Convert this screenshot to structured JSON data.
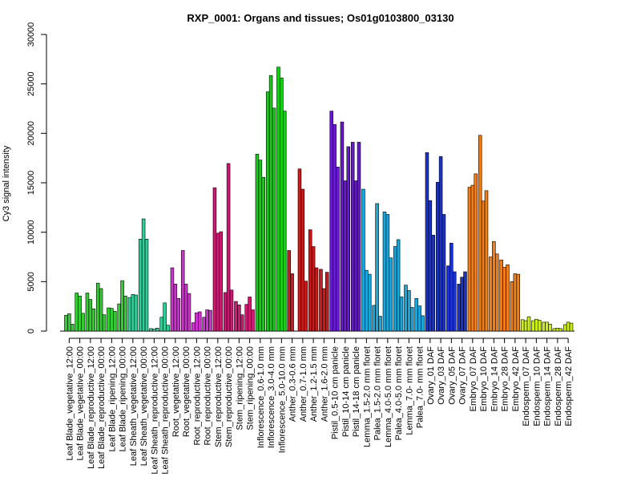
{
  "chart_data": {
    "type": "bar",
    "title": "RXP_0001: Organs and tissues; Os01g0103800_03130",
    "xlabel": "",
    "ylabel": "Cy3 signal intensity",
    "ylim": [
      0,
      30000
    ],
    "yticks": [
      0,
      5000,
      10000,
      15000,
      20000,
      25000,
      30000
    ],
    "grid": false,
    "legend": "none",
    "groups": [
      {
        "label": "Leaf Blade_vegetative_12:00",
        "color": "#33cc33",
        "values": [
          1600,
          1750,
          700
        ]
      },
      {
        "label": "Leaf Blade_vegetative_00:00",
        "color": "#33cc33",
        "values": [
          3850,
          3550,
          1800
        ]
      },
      {
        "label": "Leaf Blade_reproductive_12:00",
        "color": "#33cc33",
        "values": [
          3850,
          3200,
          2250
        ]
      },
      {
        "label": "Leaf Blade_reproductive_00:00",
        "color": "#33cc33",
        "values": [
          4850,
          4300,
          1650
        ]
      },
      {
        "label": "Leaf Blade_ripening_12:00",
        "color": "#33cc33",
        "values": [
          2350,
          2300,
          2000
        ]
      },
      {
        "label": "Leaf Blade_ripening_00:00",
        "color": "#33cc33",
        "values": [
          2750,
          5100,
          3550
        ]
      },
      {
        "label": "Leaf Sheath_vegetative_12:00",
        "color": "#33cc99",
        "values": [
          3400,
          3700,
          3650
        ]
      },
      {
        "label": "Leaf Sheath_vegetative_00:00",
        "color": "#33cc99",
        "values": [
          9300,
          11350,
          9300
        ]
      },
      {
        "label": "Leaf Sheath_reproductive_12:00",
        "color": "#33cc99",
        "values": [
          250,
          200,
          300
        ]
      },
      {
        "label": "Leaf Sheath_reproductive_00:00",
        "color": "#33cc99",
        "values": [
          1400,
          2850,
          600
        ]
      },
      {
        "label": "Root_vegetative_12:00",
        "color": "#cc33cc",
        "values": [
          6400,
          4750,
          3300
        ]
      },
      {
        "label": "Root_vegetative_00:00",
        "color": "#cc33cc",
        "values": [
          8150,
          4750,
          3800
        ]
      },
      {
        "label": "Root_reproductive_12:00",
        "color": "#cc33cc",
        "values": [
          850,
          1850,
          1950
        ]
      },
      {
        "label": "Root_reproductive_00:00",
        "color": "#cc33cc",
        "values": [
          1400,
          2150,
          2100
        ]
      },
      {
        "label": "Stem_reproductive_12:00",
        "color": "#cc1a73",
        "values": [
          14500,
          9900,
          10050
        ]
      },
      {
        "label": "Stem_reproductive_00:00",
        "color": "#cc1a73",
        "values": [
          3900,
          16950,
          4150
        ]
      },
      {
        "label": "Stem_ripening_12:00",
        "color": "#cc1a73",
        "values": [
          3000,
          2650,
          1650
        ]
      },
      {
        "label": "Stem_ripening_00:00",
        "color": "#cc1a73",
        "values": [
          2700,
          3450,
          2150
        ]
      },
      {
        "label": "Inflorescence_0.6-1.0 mm",
        "color": "#1acc1a",
        "values": [
          17900,
          17300,
          15550
        ]
      },
      {
        "label": "Inflorescence_3.0-4.0 mm",
        "color": "#1acc1a",
        "values": [
          24200,
          25850,
          22550
        ]
      },
      {
        "label": "Inflorescence_5.0-10.0 mm",
        "color": "#1acc1a",
        "values": [
          26700,
          25600,
          22250
        ]
      },
      {
        "label": "Anther_0.3-0.6 mm",
        "color": "#cc1a1a",
        "values": [
          8150,
          5800,
          0
        ]
      },
      {
        "label": "Anther_0.7-1.0 mm",
        "color": "#cc1a1a",
        "values": [
          16400,
          14350,
          5050
        ]
      },
      {
        "label": "Anther_1.2-1.5 mm",
        "color": "#cc1a1a",
        "values": [
          10250,
          8550,
          6400
        ]
      },
      {
        "label": "Anther_1.6-2.0 mm",
        "color": "#cc1a1a",
        "values": [
          6250,
          4300,
          5950
        ]
      },
      {
        "label": "Pistil_0.5-10 cm panicle",
        "color": "#661acc",
        "values": [
          22250,
          20900,
          16600
        ]
      },
      {
        "label": "Pistil_10-14 cm panicle",
        "color": "#661acc",
        "values": [
          21150,
          15200,
          18650
        ]
      },
      {
        "label": "Pistil_14-18 cm panicle",
        "color": "#661acc",
        "values": [
          19100,
          15200,
          19100
        ]
      },
      {
        "label": "Lemma_1.5-2.0 mm floret",
        "color": "#1aa6d9",
        "values": [
          14350,
          6150,
          5750
        ]
      },
      {
        "label": "Palea_1.5-2.0 mm floret",
        "color": "#1aa6d9",
        "values": [
          2600,
          12900,
          1500
        ]
      },
      {
        "label": "Lemma_4.0-5.0 mm floret",
        "color": "#1aa6d9",
        "values": [
          12050,
          11800,
          7400
        ]
      },
      {
        "label": "Palea_4.0-5.0 mm floret",
        "color": "#1aa6d9",
        "values": [
          8550,
          9250,
          3450
        ]
      },
      {
        "label": "Lemma_7.0- mm floret",
        "color": "#1aa6d9",
        "values": [
          4650,
          4100,
          2400
        ]
      },
      {
        "label": "Palea_7.0- mm floret",
        "color": "#1aa6d9",
        "values": [
          3300,
          2550,
          1550
        ]
      },
      {
        "label": "Ovary_01 DAF",
        "color": "#1a33cc",
        "values": [
          18050,
          13200,
          9700
        ]
      },
      {
        "label": "Ovary_03 DAF",
        "color": "#1a33cc",
        "values": [
          15050,
          17650,
          11800
        ]
      },
      {
        "label": "Ovary_05 DAF",
        "color": "#1a33cc",
        "values": [
          6600,
          8900,
          6000
        ]
      },
      {
        "label": "Ovary_07 DAF",
        "color": "#1a33cc",
        "values": [
          4750,
          5450,
          6000
        ]
      },
      {
        "label": "Embryo_07 DAF",
        "color": "#ee7f1a",
        "values": [
          14550,
          14750,
          15900
        ]
      },
      {
        "label": "Embryo_10 DAF",
        "color": "#ee7f1a",
        "values": [
          19800,
          13150,
          14200
        ]
      },
      {
        "label": "Embryo_14 DAF",
        "color": "#ee7f1a",
        "values": [
          7500,
          9050,
          7800
        ]
      },
      {
        "label": "Embryo_28 DAF",
        "color": "#ee7f1a",
        "values": [
          7200,
          6450,
          6700
        ]
      },
      {
        "label": "Embryo_42 DAF",
        "color": "#ee7f1a",
        "values": [
          5000,
          5800,
          5750
        ]
      },
      {
        "label": "Endosperm_07 DAF",
        "color": "#ccee1a",
        "values": [
          1150,
          1050,
          1450
        ]
      },
      {
        "label": "Endosperm_10 DAF",
        "color": "#ccee1a",
        "values": [
          1050,
          1200,
          1100
        ]
      },
      {
        "label": "Endosperm_14 DAF",
        "color": "#ccee1a",
        "values": [
          900,
          900,
          700
        ]
      },
      {
        "label": "Endosperm_28 DAF",
        "color": "#ccee1a",
        "values": [
          250,
          300,
          250
        ]
      },
      {
        "label": "Endosperm_42 DAF",
        "color": "#ccee1a",
        "values": [
          650,
          900,
          800
        ]
      }
    ]
  }
}
